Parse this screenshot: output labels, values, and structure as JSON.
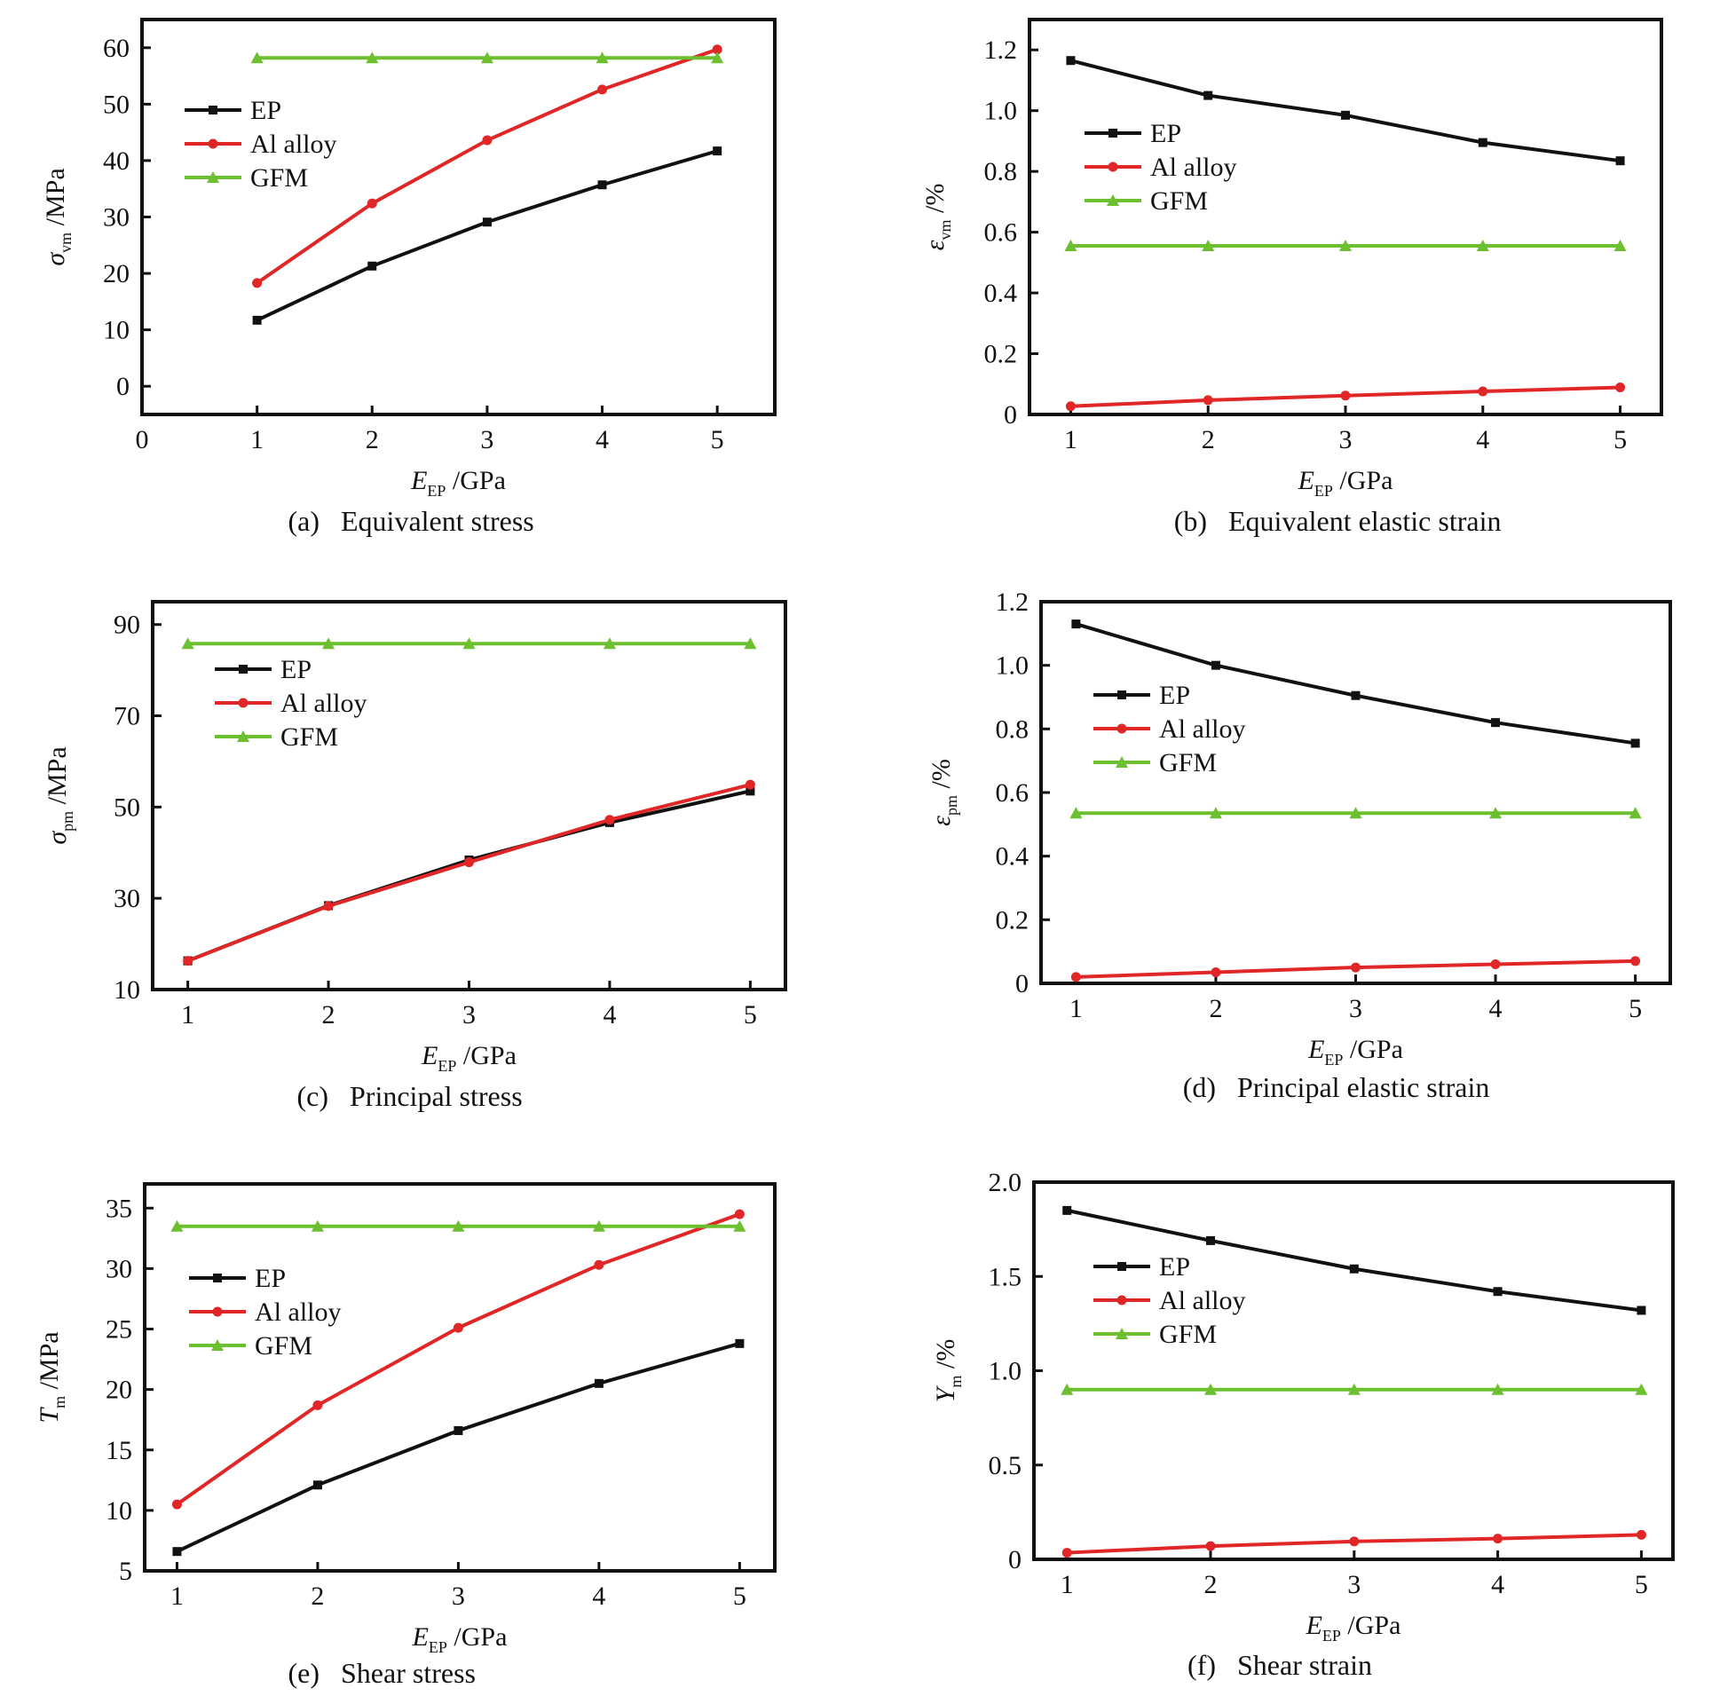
{
  "colors": {
    "EP": "#111111",
    "Al alloy": "#e02626",
    "GFM": "#6cbf2f"
  },
  "series_names": [
    "EP",
    "Al alloy",
    "GFM"
  ],
  "chart_data": [
    {
      "id": "a",
      "type": "line",
      "caption_letter": "(a)",
      "caption_text": "Equivalent stress",
      "ylabel": "σvm /MPa",
      "ylabel_main": "σ",
      "ylabel_sub": "vm",
      "ylabel_unit": " /MPa",
      "xlabel": "EEP /GPa",
      "xlabel_main": "E",
      "xlabel_sub": "EP",
      "xlabel_unit": " /GPa",
      "xlim": [
        0,
        5.5
      ],
      "ylim": [
        -5,
        65
      ],
      "xticks": [
        0,
        1,
        2,
        3,
        4,
        5
      ],
      "yticks": [
        0,
        10,
        20,
        30,
        40,
        50,
        60
      ],
      "x": [
        1,
        2,
        3,
        4,
        5
      ],
      "series": [
        {
          "name": "EP",
          "values": [
            11.7,
            21.3,
            29.1,
            35.7,
            41.7
          ]
        },
        {
          "name": "Al alloy",
          "values": [
            18.3,
            32.4,
            43.6,
            52.6,
            59.7
          ]
        },
        {
          "name": "GFM",
          "values": [
            58.2,
            58.2,
            58.2,
            58.2,
            58.2
          ]
        }
      ],
      "legend": "upper-left"
    },
    {
      "id": "b",
      "type": "line",
      "caption_letter": "(b)",
      "caption_text": "Equivalent elastic strain",
      "ylabel": "εvm /%",
      "ylabel_main": "ε",
      "ylabel_sub": "vm",
      "ylabel_unit": " /%",
      "xlabel": "EEP /GPa",
      "xlabel_main": "E",
      "xlabel_sub": "EP",
      "xlabel_unit": " /GPa",
      "xlim": [
        0.7,
        5.3
      ],
      "ylim": [
        0,
        1.3
      ],
      "xticks": [
        1,
        2,
        3,
        4,
        5
      ],
      "yticks": [
        0,
        0.2,
        0.4,
        0.6,
        0.8,
        1.0,
        1.2
      ],
      "ytick_labels": [
        "0",
        "0.2",
        "0.4",
        "0.6",
        "0.8",
        "1.0",
        "1.2"
      ],
      "x": [
        1,
        2,
        3,
        4,
        5
      ],
      "series": [
        {
          "name": "EP",
          "values": [
            1.165,
            1.05,
            0.985,
            0.895,
            0.835
          ]
        },
        {
          "name": "Al alloy",
          "values": [
            0.027,
            0.047,
            0.062,
            0.076,
            0.089
          ]
        },
        {
          "name": "GFM",
          "values": [
            0.555,
            0.555,
            0.555,
            0.555,
            0.555
          ]
        }
      ],
      "legend": "upper-left"
    },
    {
      "id": "c",
      "type": "line",
      "caption_letter": "(c)",
      "caption_text": "Principal stress",
      "ylabel": "σpm /MPa",
      "ylabel_main": "σ",
      "ylabel_sub": "pm",
      "ylabel_unit": " /MPa",
      "xlabel": "EEP /GPa",
      "xlabel_main": "E",
      "xlabel_sub": "EP",
      "xlabel_unit": " /GPa",
      "xlim": [
        0.75,
        5.25
      ],
      "ylim": [
        10,
        95
      ],
      "xticks": [
        1,
        2,
        3,
        4,
        5
      ],
      "yticks": [
        10,
        30,
        50,
        70,
        90
      ],
      "x": [
        1,
        2,
        3,
        4,
        5
      ],
      "series": [
        {
          "name": "EP",
          "values": [
            16.3,
            28.4,
            38.4,
            46.6,
            53.5
          ]
        },
        {
          "name": "Al alloy",
          "values": [
            16.3,
            28.3,
            37.9,
            47.2,
            54.9
          ]
        },
        {
          "name": "GFM",
          "values": [
            85.8,
            85.8,
            85.8,
            85.8,
            85.8
          ]
        }
      ],
      "legend": "upper-left"
    },
    {
      "id": "d",
      "type": "line",
      "caption_letter": "(d)",
      "caption_text": "Principal elastic strain",
      "ylabel": "εpm /%",
      "ylabel_main": "ε",
      "ylabel_sub": "pm",
      "ylabel_unit": " /%",
      "xlabel": "EEP /GPa",
      "xlabel_main": "E",
      "xlabel_sub": "EP",
      "xlabel_unit": " /GPa",
      "xlim": [
        0.75,
        5.25
      ],
      "ylim": [
        0,
        1.2
      ],
      "xticks": [
        1,
        2,
        3,
        4,
        5
      ],
      "yticks": [
        0,
        0.2,
        0.4,
        0.6,
        0.8,
        1.0,
        1.2
      ],
      "ytick_labels": [
        "0",
        "0.2",
        "0.4",
        "0.6",
        "0.8",
        "1.0",
        "1.2"
      ],
      "x": [
        1,
        2,
        3,
        4,
        5
      ],
      "series": [
        {
          "name": "EP",
          "values": [
            1.13,
            1.0,
            0.905,
            0.82,
            0.755
          ]
        },
        {
          "name": "Al alloy",
          "values": [
            0.02,
            0.035,
            0.05,
            0.06,
            0.07
          ]
        },
        {
          "name": "GFM",
          "values": [
            0.535,
            0.535,
            0.535,
            0.535,
            0.535
          ]
        }
      ],
      "legend": "upper-left"
    },
    {
      "id": "e",
      "type": "line",
      "caption_letter": "(e)",
      "caption_text": "Shear stress",
      "ylabel": "Tm /MPa",
      "ylabel_main": "T",
      "ylabel_sub": "m",
      "ylabel_unit": " /MPa",
      "xlabel": "EEP /GPa",
      "xlabel_main": "E",
      "xlabel_sub": "EP",
      "xlabel_unit": " /GPa",
      "xlim": [
        0.77,
        5.25
      ],
      "ylim": [
        5,
        37
      ],
      "xticks": [
        1,
        2,
        3,
        4,
        5
      ],
      "yticks": [
        5,
        10,
        15,
        20,
        25,
        30,
        35
      ],
      "x": [
        1,
        2,
        3,
        4,
        5
      ],
      "series": [
        {
          "name": "EP",
          "values": [
            6.6,
            12.1,
            16.6,
            20.5,
            23.8
          ]
        },
        {
          "name": "Al alloy",
          "values": [
            10.5,
            18.7,
            25.1,
            30.3,
            34.5
          ]
        },
        {
          "name": "GFM",
          "values": [
            33.5,
            33.5,
            33.5,
            33.5,
            33.5
          ]
        }
      ],
      "legend": "upper-left"
    },
    {
      "id": "f",
      "type": "line",
      "caption_letter": "(f)",
      "caption_text": "Shear strain",
      "ylabel": "Ym /%",
      "ylabel_main": "Y",
      "ylabel_sub": "m",
      "ylabel_unit": " /%",
      "xlabel": "EEP /GPa",
      "xlabel_main": "E",
      "xlabel_sub": "EP",
      "xlabel_unit": " /GPa",
      "xlim": [
        0.77,
        5.22
      ],
      "ylim": [
        0,
        2.0
      ],
      "xticks": [
        1,
        2,
        3,
        4,
        5
      ],
      "yticks": [
        0,
        0.5,
        1.0,
        1.5,
        2.0
      ],
      "ytick_labels": [
        "0",
        "0.5",
        "1.0",
        "1.5",
        "2.0"
      ],
      "x": [
        1,
        2,
        3,
        4,
        5
      ],
      "series": [
        {
          "name": "EP",
          "values": [
            1.85,
            1.69,
            1.54,
            1.42,
            1.32
          ]
        },
        {
          "name": "Al alloy",
          "values": [
            0.035,
            0.07,
            0.095,
            0.11,
            0.13
          ]
        },
        {
          "name": "GFM",
          "values": [
            0.9,
            0.9,
            0.9,
            0.9,
            0.9
          ]
        }
      ],
      "legend": "upper-left"
    }
  ]
}
